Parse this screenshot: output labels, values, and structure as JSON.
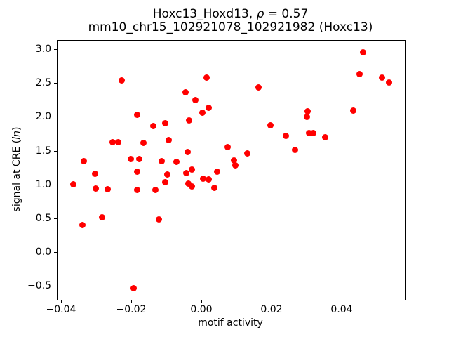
{
  "figure": {
    "background": "#ffffff",
    "title_line1": {
      "prefix": "Hoxc13_Hoxd13, ",
      "rho": "ρ",
      "suffix": " = 0.57"
    },
    "title_line2": "mm10_chr15_102921078_102921982 (Hoxc13)",
    "xlabel": "motif activity",
    "ylabel": {
      "prefix": "signal at CRE (",
      "italic": "ln",
      "suffix": ")"
    }
  },
  "chart_data": {
    "type": "scatter",
    "title": "Hoxc13_Hoxd13, ρ = 0.57",
    "subtitle": "mm10_chr15_102921078_102921982 (Hoxc13)",
    "xlabel": "motif activity",
    "ylabel": "signal at CRE (ln)",
    "legend": "none",
    "grid": false,
    "marker_color": "#ff0000",
    "xlim": [
      -0.0412,
      0.0578
    ],
    "ylim": [
      -0.694,
      3.134
    ],
    "xticks": [
      -0.04,
      -0.02,
      0.0,
      0.02,
      0.04
    ],
    "xtick_labels": [
      "−0.04",
      "−0.02",
      "0.00",
      "0.02",
      "0.04"
    ],
    "yticks": [
      3.0,
      2.5,
      2.0,
      1.5,
      1.0,
      0.5,
      0.0,
      -0.5
    ],
    "ytick_labels": [
      "3.0",
      "2.5",
      "2.0",
      "1.5",
      "1.0",
      "0.5",
      "0.0",
      "−0.5"
    ],
    "points": [
      [
        -0.0367,
        1.01
      ],
      [
        -0.0342,
        0.41
      ],
      [
        -0.0337,
        1.36
      ],
      [
        -0.0305,
        1.17
      ],
      [
        -0.0304,
        0.95
      ],
      [
        -0.0285,
        0.53
      ],
      [
        -0.0269,
        0.94
      ],
      [
        -0.0255,
        1.64
      ],
      [
        -0.0239,
        1.63
      ],
      [
        -0.0229,
        2.55
      ],
      [
        -0.0204,
        1.39
      ],
      [
        -0.0195,
        -0.52
      ],
      [
        -0.0186,
        0.93
      ],
      [
        -0.0185,
        2.04
      ],
      [
        -0.0185,
        1.2
      ],
      [
        -0.0179,
        1.39
      ],
      [
        -0.0167,
        1.62
      ],
      [
        -0.0139,
        1.87
      ],
      [
        -0.0134,
        0.93
      ],
      [
        -0.0124,
        0.49
      ],
      [
        -0.0115,
        1.36
      ],
      [
        -0.0106,
        1.91
      ],
      [
        -0.0105,
        1.04
      ],
      [
        -0.0099,
        1.16
      ],
      [
        -0.0096,
        1.67
      ],
      [
        -0.0074,
        1.34
      ],
      [
        -0.0047,
        2.37
      ],
      [
        -0.0045,
        1.18
      ],
      [
        -0.0042,
        1.49
      ],
      [
        -0.0039,
        1.02
      ],
      [
        -0.0037,
        1.96
      ],
      [
        -0.003,
        0.98
      ],
      [
        -0.0029,
        1.23
      ],
      [
        -0.0019,
        2.26
      ],
      [
        0.0,
        2.07
      ],
      [
        0.0002,
        1.1
      ],
      [
        0.0013,
        2.59
      ],
      [
        0.0019,
        2.14
      ],
      [
        0.0019,
        1.09
      ],
      [
        0.0035,
        0.96
      ],
      [
        0.0043,
        1.2
      ],
      [
        0.0073,
        1.56
      ],
      [
        0.0091,
        1.37
      ],
      [
        0.0095,
        1.29
      ],
      [
        0.0129,
        1.47
      ],
      [
        0.0161,
        2.44
      ],
      [
        0.0195,
        1.88
      ],
      [
        0.0239,
        1.73
      ],
      [
        0.0264,
        1.52
      ],
      [
        0.0298,
        2.01
      ],
      [
        0.0301,
        2.09
      ],
      [
        0.0304,
        1.77
      ],
      [
        0.0316,
        1.77
      ],
      [
        0.0351,
        1.71
      ],
      [
        0.0431,
        2.1
      ],
      [
        0.0449,
        2.64
      ],
      [
        0.0459,
        2.96
      ],
      [
        0.0513,
        2.59
      ],
      [
        0.0533,
        2.52
      ]
    ]
  }
}
